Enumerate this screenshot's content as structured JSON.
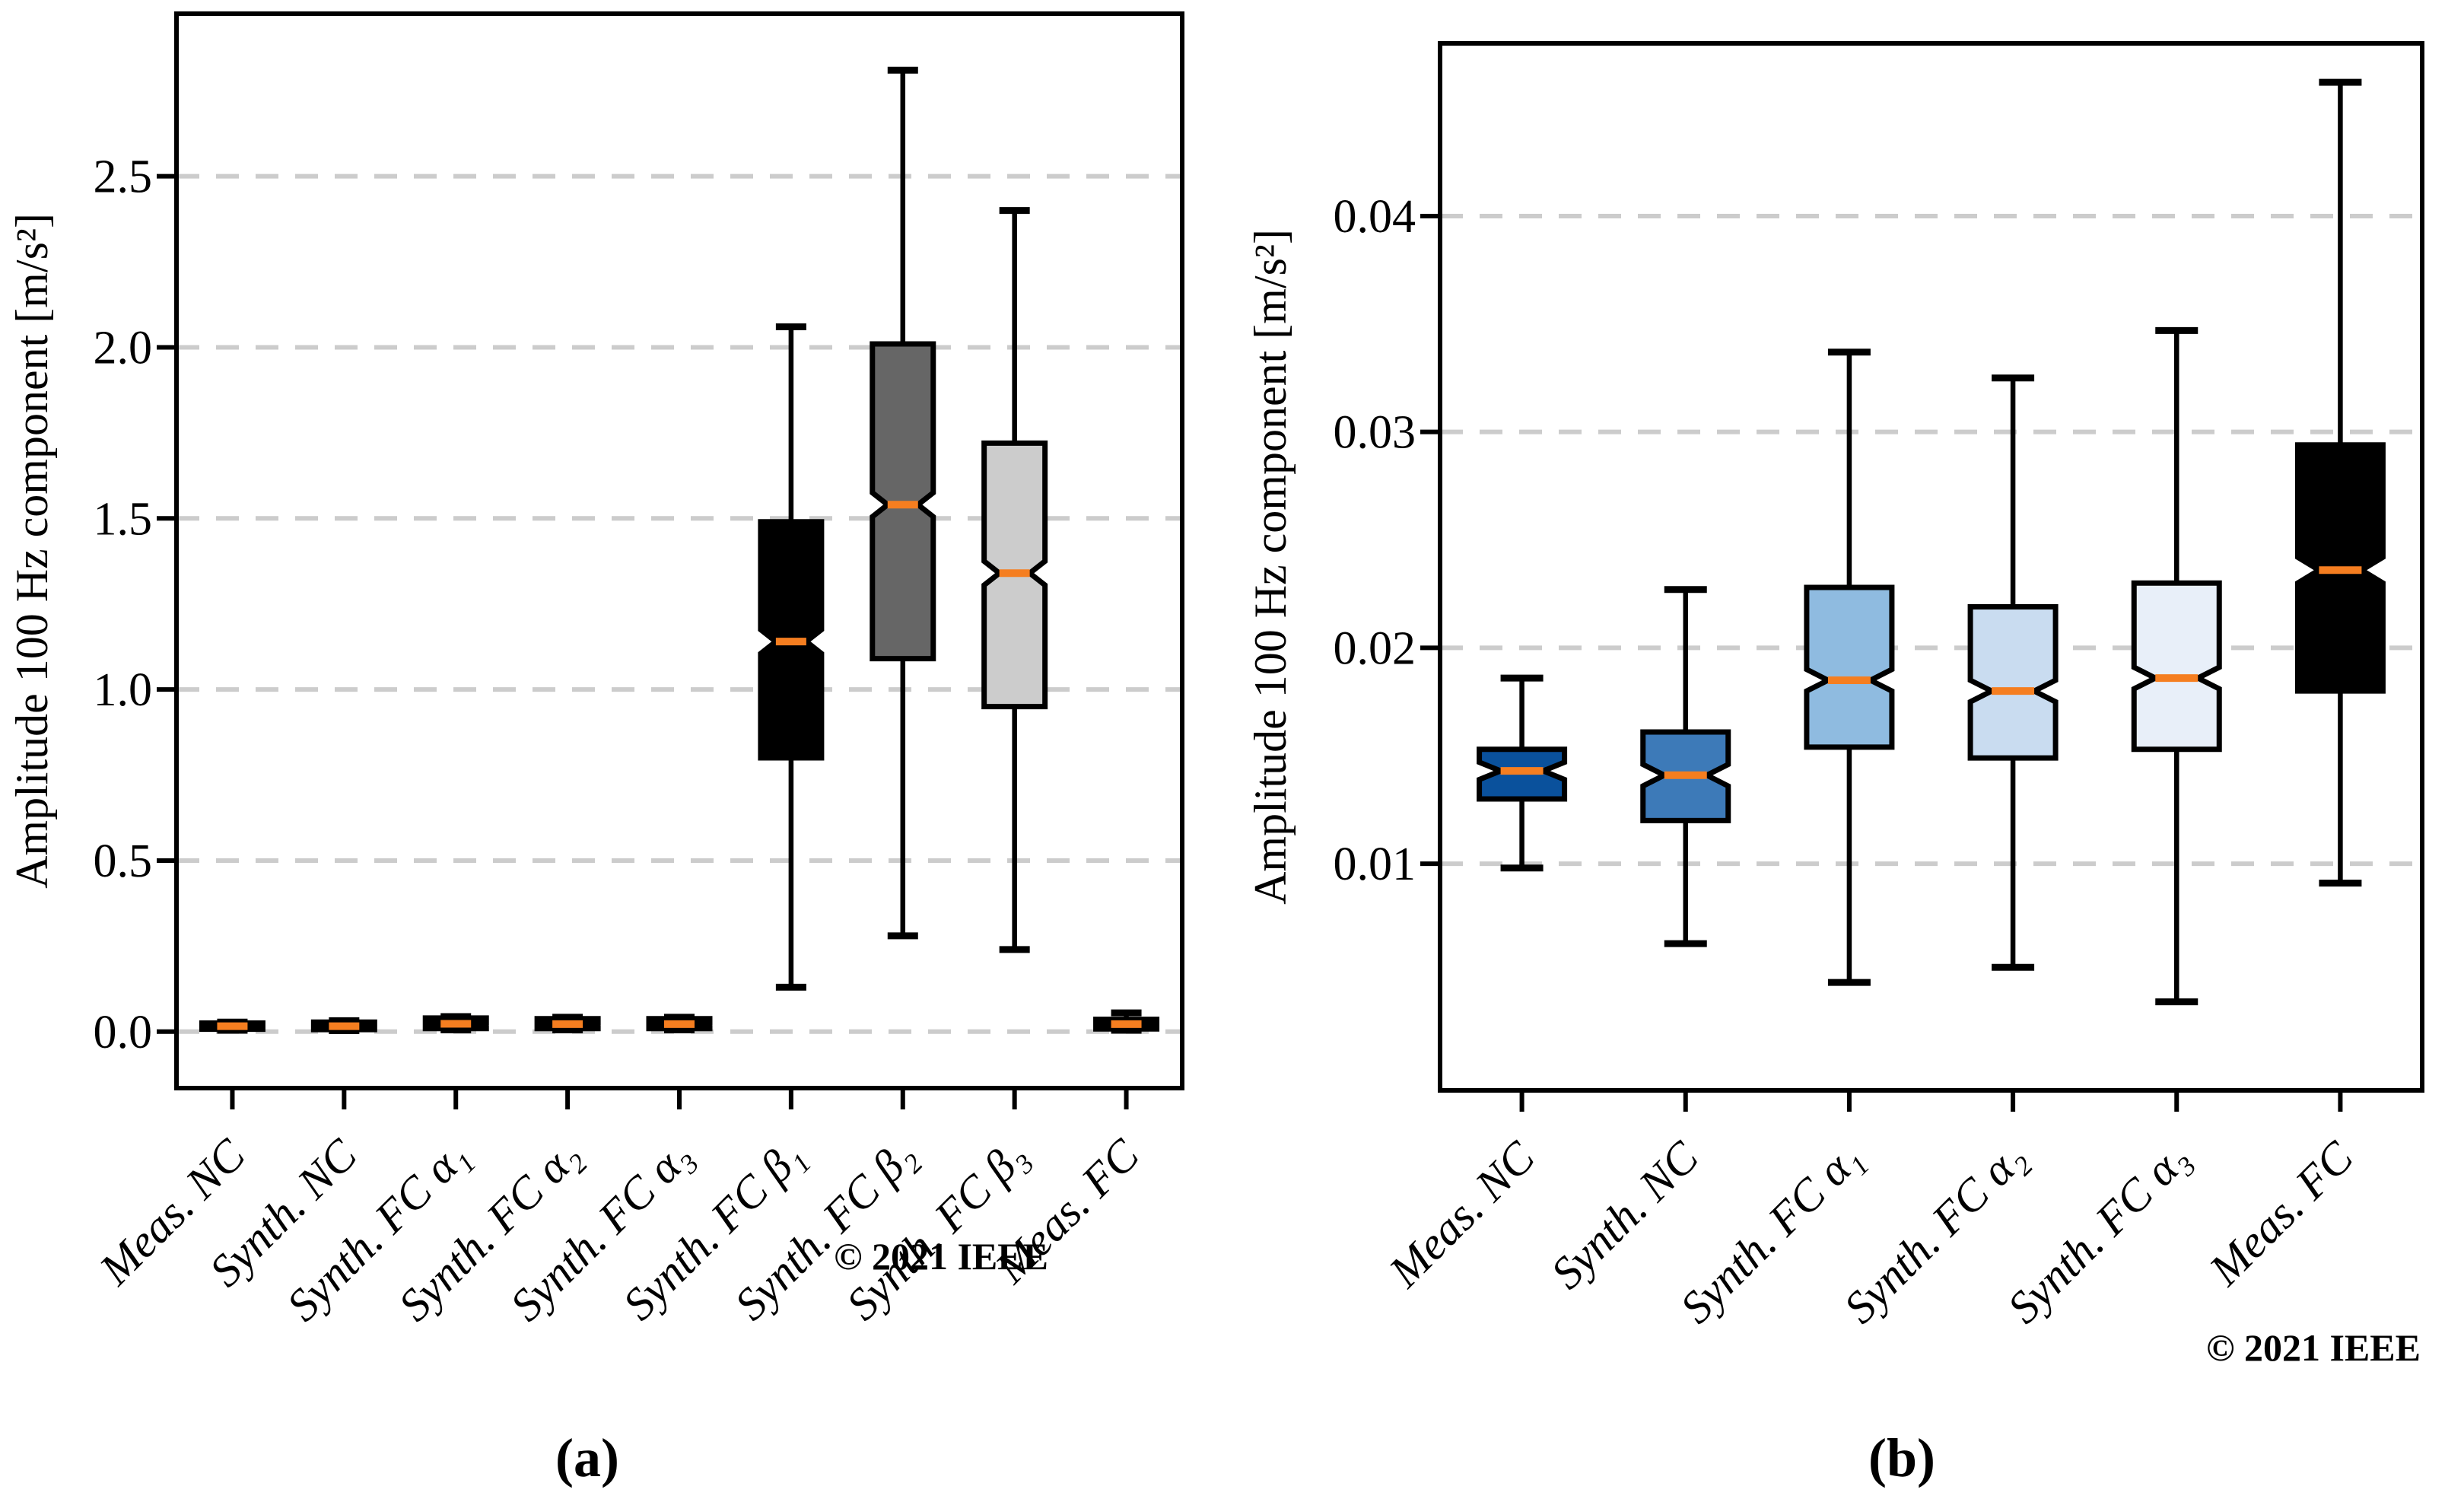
{
  "panels": [
    {
      "caption": "(a)",
      "copyright": "© 2021 IEEE"
    },
    {
      "caption": "(b)",
      "copyright": "© 2021 IEEE"
    }
  ],
  "chart_data": [
    {
      "type": "boxplot",
      "title": "",
      "xlabel": "",
      "ylabel": "Amplitude 100 Hz component [m/s²]",
      "categories": [
        "Meas. NC",
        "Synth. NC",
        "Synth. FC α₁",
        "Synth. FC α₂",
        "Synth. FC α₃",
        "Synth. FC β₁",
        "Synth. FC β₂",
        "Synth. FC β₃",
        "Meas. FC"
      ],
      "ylim": [
        -0.165,
        2.975
      ],
      "yticks": [
        0.0,
        0.5,
        1.0,
        1.5,
        2.0,
        2.5
      ],
      "ytick_labels": [
        "0.0",
        "0.5",
        "1.0",
        "1.5",
        "2.0",
        "2.5"
      ],
      "grid": {
        "axis": "y",
        "style": "dashed",
        "color": "#cccccc"
      },
      "median_color": "#f57e20",
      "boxes": [
        {
          "label": "Meas. NC",
          "whislo": 0.004,
          "q1": 0.007,
          "med": 0.016,
          "q3": 0.025,
          "whishi": 0.028,
          "notch": 0.003,
          "fill": "#000000"
        },
        {
          "label": "Synth. NC",
          "whislo": 0.003,
          "q1": 0.006,
          "med": 0.016,
          "q3": 0.028,
          "whishi": 0.032,
          "notch": 0.003,
          "fill": "#000000"
        },
        {
          "label": "Synth. FC α₁",
          "whislo": 0.005,
          "q1": 0.009,
          "med": 0.023,
          "q3": 0.04,
          "whishi": 0.044,
          "notch": 0.003,
          "fill": "#000000"
        },
        {
          "label": "Synth. FC α₂",
          "whislo": 0.005,
          "q1": 0.009,
          "med": 0.022,
          "q3": 0.038,
          "whishi": 0.042,
          "notch": 0.003,
          "fill": "#000000"
        },
        {
          "label": "Synth. FC α₃",
          "whislo": 0.005,
          "q1": 0.009,
          "med": 0.022,
          "q3": 0.038,
          "whishi": 0.042,
          "notch": 0.003,
          "fill": "#000000"
        },
        {
          "label": "Synth. FC β₁",
          "whislo": 0.13,
          "q1": 0.8,
          "med": 1.14,
          "q3": 1.49,
          "whishi": 2.06,
          "notch": 0.035,
          "fill": "#000000"
        },
        {
          "label": "Synth. FC β₂",
          "whislo": 0.28,
          "q1": 1.09,
          "med": 1.54,
          "q3": 2.01,
          "whishi": 2.81,
          "notch": 0.035,
          "fill": "#666666"
        },
        {
          "label": "Synth. FC β₃",
          "whislo": 0.24,
          "q1": 0.95,
          "med": 1.34,
          "q3": 1.72,
          "whishi": 2.4,
          "notch": 0.035,
          "fill": "#cccccc"
        },
        {
          "label": "Meas. FC",
          "whislo": 0.004,
          "q1": 0.008,
          "med": 0.022,
          "q3": 0.036,
          "whishi": 0.055,
          "notch": 0.004,
          "fill": "#000000"
        }
      ]
    },
    {
      "type": "boxplot",
      "title": "",
      "xlabel": "",
      "ylabel": "Amplitude 100 Hz component [m/s²]",
      "categories": [
        "Meas. NC",
        "Synth. NC",
        "Synth. FC α₁",
        "Synth. FC α₂",
        "Synth. FC α₃",
        "Meas. FC"
      ],
      "ylim": [
        -0.0005,
        0.048
      ],
      "yticks": [
        0.01,
        0.02,
        0.03,
        0.04
      ],
      "ytick_labels": [
        "0.01",
        "0.02",
        "0.03",
        "0.04"
      ],
      "grid": {
        "axis": "y",
        "style": "dashed",
        "color": "#cccccc"
      },
      "median_color": "#f57e20",
      "boxes": [
        {
          "label": "Meas. NC",
          "whislo": 0.0098,
          "q1": 0.013,
          "med": 0.0143,
          "q3": 0.0153,
          "whishi": 0.0186,
          "notch": 0.0004,
          "fill": "#0a519c"
        },
        {
          "label": "Synth. NC",
          "whislo": 0.0063,
          "q1": 0.012,
          "med": 0.0141,
          "q3": 0.0161,
          "whishi": 0.0227,
          "notch": 0.0005,
          "fill": "#3d7ab8"
        },
        {
          "label": "Synth. FC α₁",
          "whislo": 0.0045,
          "q1": 0.0154,
          "med": 0.0185,
          "q3": 0.0228,
          "whishi": 0.0337,
          "notch": 0.0005,
          "fill": "#8fbbe0"
        },
        {
          "label": "Synth. FC α₂",
          "whislo": 0.0052,
          "q1": 0.0149,
          "med": 0.018,
          "q3": 0.0219,
          "whishi": 0.0325,
          "notch": 0.0005,
          "fill": "#c9dcf0"
        },
        {
          "label": "Synth. FC α₃",
          "whislo": 0.0036,
          "q1": 0.0153,
          "med": 0.0186,
          "q3": 0.023,
          "whishi": 0.0347,
          "notch": 0.0005,
          "fill": "#e8eff9"
        },
        {
          "label": "Meas. FC",
          "whislo": 0.0091,
          "q1": 0.018,
          "med": 0.0236,
          "q3": 0.0294,
          "whishi": 0.0462,
          "notch": 0.0006,
          "fill": "#000000"
        }
      ]
    }
  ]
}
